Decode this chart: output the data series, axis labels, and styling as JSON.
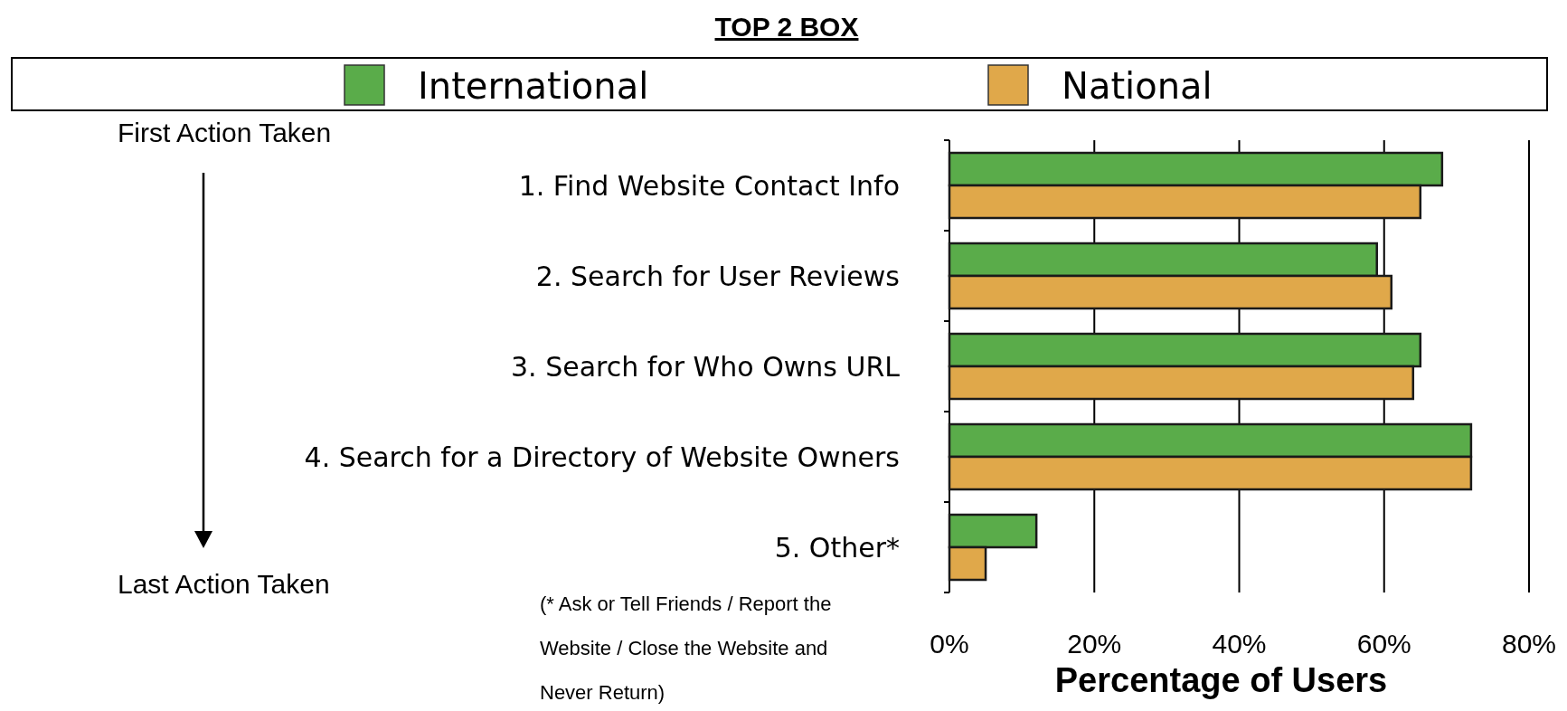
{
  "chart_data": {
    "type": "bar",
    "orientation": "horizontal",
    "title": "TOP 2 BOX",
    "xlabel": "Percentage of Users",
    "categories": [
      "1.  Find Website Contact Info",
      "2.  Search for User Reviews",
      "3.  Search for Who Owns URL",
      "4.  Search for a Directory of Website Owners",
      "5.  Other*"
    ],
    "series": [
      {
        "name": "International",
        "color": "#5aac4a",
        "values": [
          68,
          59,
          65,
          72,
          12
        ]
      },
      {
        "name": "National",
        "color": "#e0a84a",
        "values": [
          65,
          61,
          64,
          72,
          5
        ]
      }
    ],
    "xlim": [
      0,
      80
    ],
    "xticks": [
      {
        "value": 0,
        "label": "0%"
      },
      {
        "value": 20,
        "label": "20%"
      },
      {
        "value": 40,
        "label": "40%"
      },
      {
        "value": 60,
        "label": "60%"
      },
      {
        "value": 80,
        "label": "80%"
      }
    ],
    "grid": "x",
    "legend": "top",
    "annotations": [
      "First Action Taken",
      "Last Action Taken",
      "(* Ask or Tell Friends / Report the Website / Close the Website and Never Return)"
    ]
  }
}
